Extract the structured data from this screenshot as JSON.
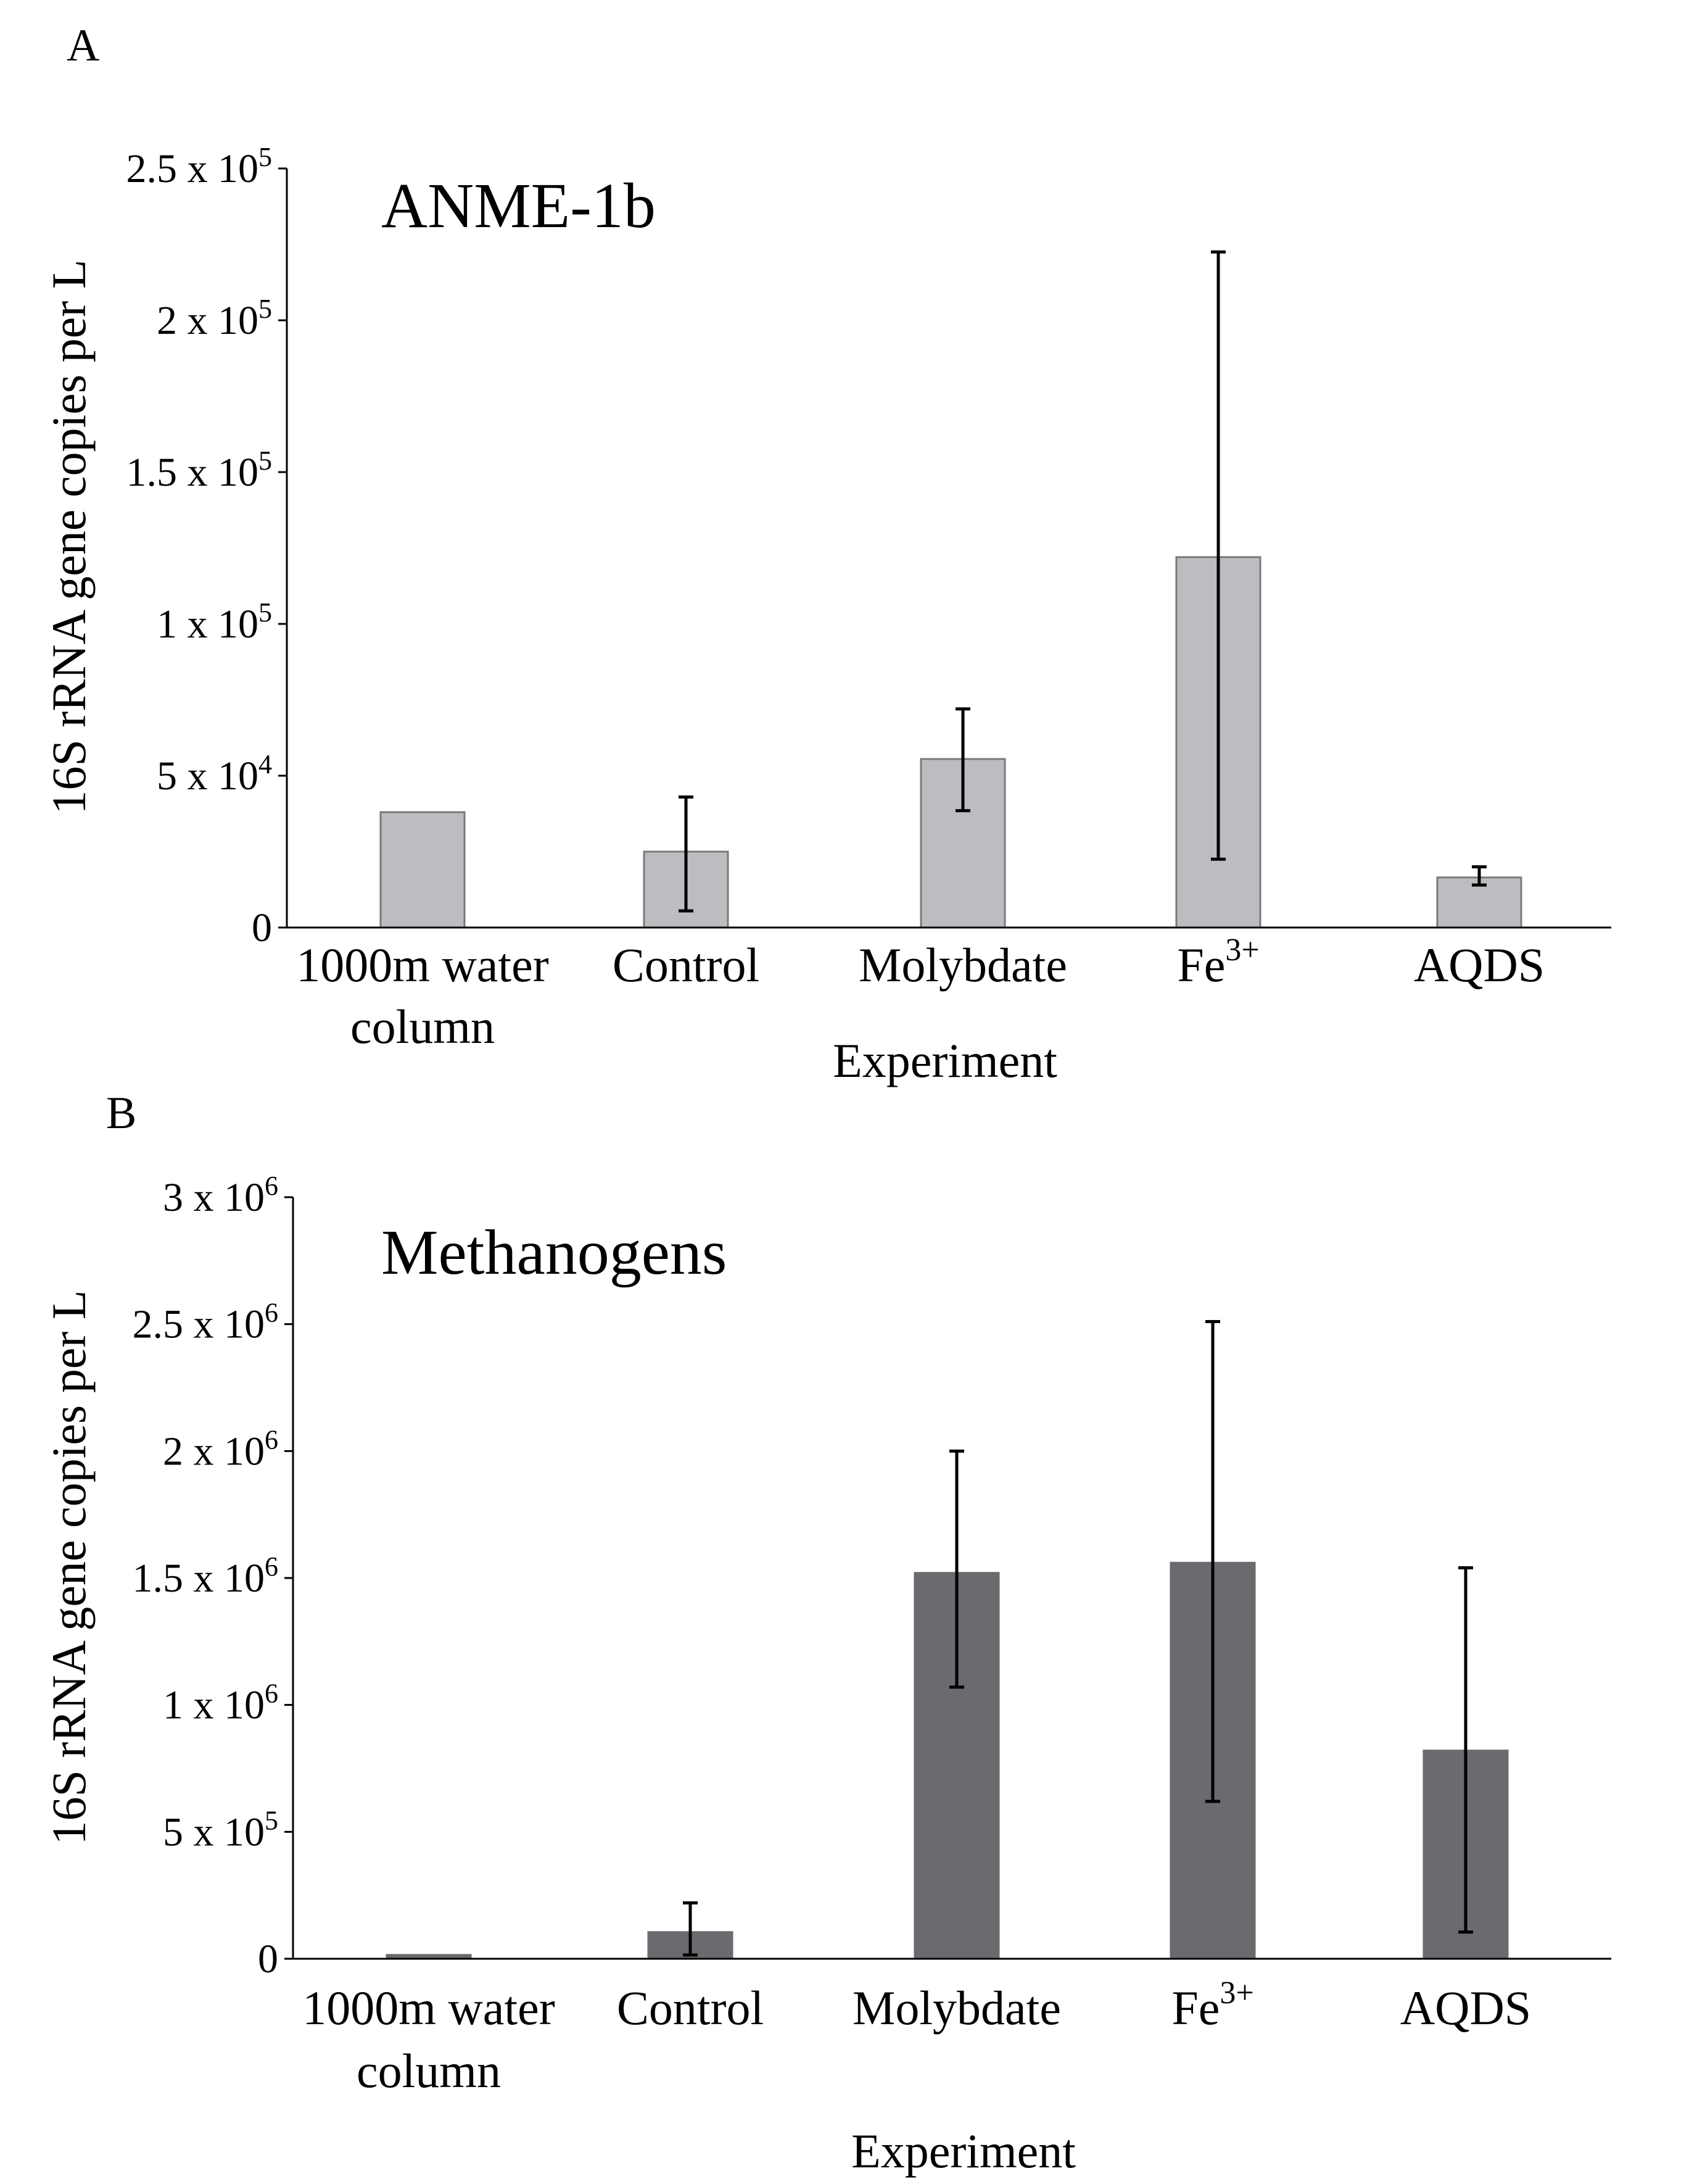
{
  "chart_data": [
    {
      "panel": "A",
      "type": "bar",
      "title": "ANME-1b",
      "xlabel": "Experiment",
      "ylabel": "16S rRNA gene copies per L",
      "ylim": [
        0,
        250000
      ],
      "bar_color": "#bcbdc0",
      "bar_edge_color": "#7a7a7a",
      "yticks": [
        {
          "value": 0,
          "mant": "0",
          "exp": ""
        },
        {
          "value": 50000,
          "mant": "5 x 10",
          "exp": "4"
        },
        {
          "value": 100000,
          "mant": "1 x 10",
          "exp": "5"
        },
        {
          "value": 150000,
          "mant": "1.5 x 10",
          "exp": "5"
        },
        {
          "value": 200000,
          "mant": "2 x 10",
          "exp": "5"
        },
        {
          "value": 250000,
          "mant": "2.5 x 10",
          "exp": "5"
        }
      ],
      "categories": [
        {
          "line1": "1000m water",
          "line2": "column",
          "sup": ""
        },
        {
          "line1": "Control",
          "line2": "",
          "sup": ""
        },
        {
          "line1": "Molybdate",
          "line2": "",
          "sup": ""
        },
        {
          "line1": "Fe",
          "line2": "",
          "sup": "3+"
        },
        {
          "line1": "AQDS",
          "line2": "",
          "sup": ""
        }
      ],
      "values": [
        38000,
        25000,
        55500,
        122000,
        16500
      ],
      "error_low": [
        null,
        5500,
        38500,
        22500,
        14000
      ],
      "error_high": [
        null,
        43000,
        72000,
        222500,
        20000
      ]
    },
    {
      "panel": "B",
      "type": "bar",
      "title": "Methanogens",
      "xlabel": "Experiment",
      "ylabel": "16S rRNA gene copies per L",
      "ylim": [
        0,
        3000000
      ],
      "bar_color": "#6a6b6f",
      "bar_edge_color": "#6a6b6f",
      "yticks": [
        {
          "value": 0,
          "mant": "0",
          "exp": ""
        },
        {
          "value": 500000,
          "mant": "5 x 10",
          "exp": "5"
        },
        {
          "value": 1000000,
          "mant": "1 x 10",
          "exp": "6"
        },
        {
          "value": 1500000,
          "mant": "1.5 x 10",
          "exp": "6"
        },
        {
          "value": 2000000,
          "mant": "2 x 10",
          "exp": "6"
        },
        {
          "value": 2500000,
          "mant": "2.5 x 10",
          "exp": "6"
        },
        {
          "value": 3000000,
          "mant": "3 x 10",
          "exp": "6"
        }
      ],
      "categories": [
        {
          "line1": "1000m water",
          "line2": "column",
          "sup": ""
        },
        {
          "line1": "Control",
          "line2": "",
          "sup": ""
        },
        {
          "line1": "Molybdate",
          "line2": "",
          "sup": ""
        },
        {
          "line1": "Fe",
          "line2": "",
          "sup": "3+"
        },
        {
          "line1": "AQDS",
          "line2": "",
          "sup": ""
        }
      ],
      "values": [
        15000,
        105000,
        1520000,
        1560000,
        820000
      ],
      "error_low": [
        null,
        15000,
        1070000,
        620000,
        105000
      ],
      "error_high": [
        null,
        220000,
        2000000,
        2510000,
        1540000
      ]
    }
  ]
}
